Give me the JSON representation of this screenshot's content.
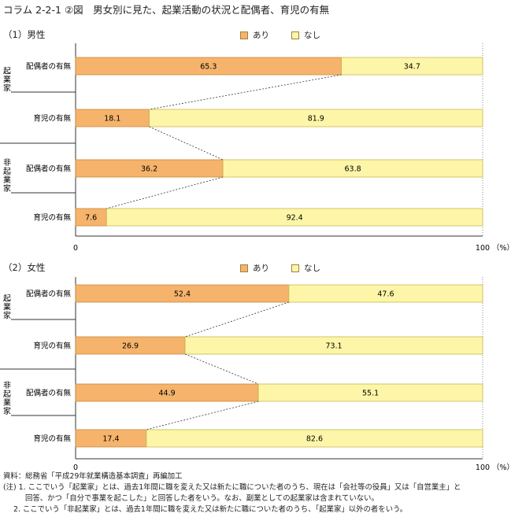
{
  "title": "コラム 2-2-1 ②図　男女別に見た、起業活動の状況と配偶者、育児の有無",
  "colors": {
    "yes": "#f5b36b",
    "no": "#fdf6a8",
    "yes_border": "#c88a3c",
    "no_border": "#c8b850"
  },
  "legend": {
    "yes": "あり",
    "no": "なし"
  },
  "axis": {
    "min_label": "0",
    "max_label": "100",
    "unit": "（%）"
  },
  "row_labels": {
    "spouse": "配偶者の有無",
    "child": "育児の有無"
  },
  "group_labels": {
    "entrepreneur": "起業家",
    "non_entrepreneur": "非起業家"
  },
  "chart_data": [
    {
      "type": "bar",
      "title": "（1）男性",
      "orientation": "horizontal-stacked-100",
      "categories": [
        "起業家 配偶者の有無",
        "起業家 育児の有無",
        "非起業家 配偶者の有無",
        "非起業家 育児の有無"
      ],
      "series": [
        {
          "name": "あり",
          "values": [
            65.3,
            18.1,
            36.2,
            7.6
          ]
        },
        {
          "name": "なし",
          "values": [
            34.7,
            81.9,
            63.8,
            92.4
          ]
        }
      ],
      "xlim": [
        0,
        100
      ]
    },
    {
      "type": "bar",
      "title": "（2）女性",
      "orientation": "horizontal-stacked-100",
      "categories": [
        "起業家 配偶者の有無",
        "起業家 育児の有無",
        "非起業家 配偶者の有無",
        "非起業家 育児の有無"
      ],
      "series": [
        {
          "name": "あり",
          "values": [
            52.4,
            26.9,
            44.9,
            17.4
          ]
        },
        {
          "name": "なし",
          "values": [
            47.6,
            73.1,
            55.1,
            82.6
          ]
        }
      ],
      "xlim": [
        0,
        100
      ]
    }
  ],
  "notes": {
    "source": "資料：総務省「平成29年就業構造基本調査」再編加工",
    "note1a": "(注) 1. ここでいう「起業家」とは、過去1年間に職を変えた又は新たに職についた者のうち、現在は「会社等の役員」又は「自営業主」と",
    "note1b": "回答、かつ「自分で事業を起こした」と回答した者をいう。なお、副業としての起業家は含まれていない。",
    "note2": "2. ここでいう「非起業家」とは、過去1年間に職を変えた又は新たに職についた者のうち、「起業家」以外の者をいう。"
  }
}
